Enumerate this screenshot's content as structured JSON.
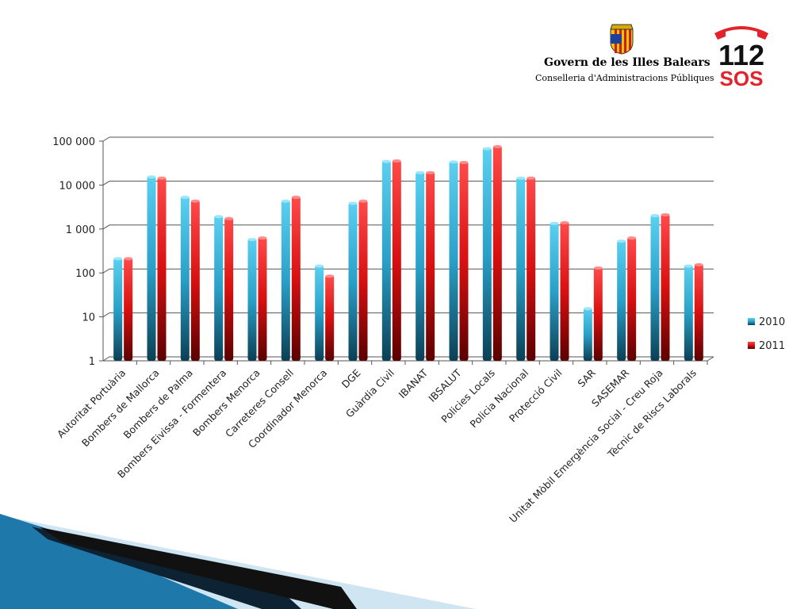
{
  "header": {
    "title": "Govern de les Illes Balears",
    "subtitle": "Conselleria d'Administracions Públiques",
    "logo_112_number": "112",
    "logo_112_text": "SOS"
  },
  "colors": {
    "series_2010": "#2aa0c8",
    "series_2011": "#d81010",
    "logo_red": "#e3232c",
    "banner_blue": "#1a6ea0"
  },
  "chart_data": {
    "type": "bar",
    "yscale": "log",
    "ylim": [
      1,
      100000
    ],
    "yticks": [
      "1",
      "10",
      "100",
      "1 000",
      "10 000",
      "100 000"
    ],
    "ytick_values": [
      1,
      10,
      100,
      1000,
      10000,
      100000
    ],
    "grid": true,
    "legend": "right",
    "categories": [
      "Autoritat Portuària",
      "Bombers de Mallorca",
      "Bombers de Palma",
      "Bombers Eivissa - Formentera",
      "Bombers Menorca",
      "Carreteres Consell",
      "Coordinador Menorca",
      "DGE",
      "Guàrdia Civil",
      "IBANAT",
      "IBSALUT",
      "Policies Locals",
      "Policia Nacional",
      "Protecció Civil",
      "SAR",
      "SASEMAR",
      "Unitat Mòbil Emergència Social - Creu Roja",
      "Tècnic de Riscs Laborals"
    ],
    "series": [
      {
        "name": "2010",
        "values": [
          220,
          16000,
          5500,
          2000,
          600,
          4500,
          150,
          4000,
          36000,
          20000,
          35000,
          70000,
          15000,
          1400,
          16,
          550,
          2100,
          150
        ]
      },
      {
        "name": "2011",
        "values": [
          220,
          15000,
          4500,
          1800,
          650,
          5500,
          88,
          4500,
          37000,
          20000,
          34000,
          78000,
          15000,
          1450,
          135,
          650,
          2200,
          160
        ]
      }
    ]
  }
}
